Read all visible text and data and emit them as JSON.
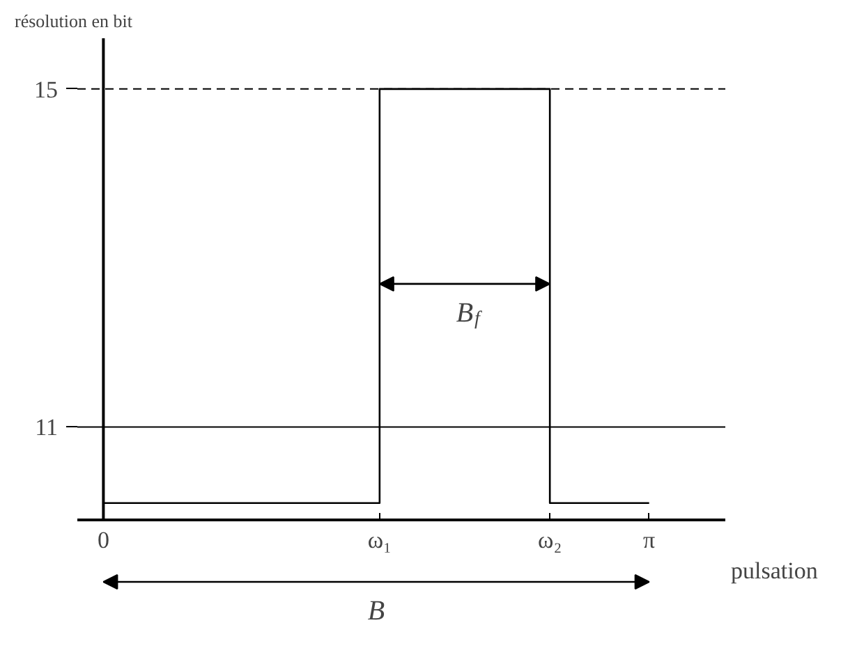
{
  "chart_data": {
    "type": "step",
    "ylabel": "résolution en bit",
    "xlabel": "pulsation",
    "x": [
      0,
      1.59,
      2.57,
      3.14159
    ],
    "series": [
      {
        "color": "#000000",
        "values": [
          10.1,
          15,
          10.1,
          10.1
        ]
      }
    ],
    "xlim": [
      -0.15,
      3.58
    ],
    "ylim": [
      9.9,
      15.6
    ],
    "xticks": [
      0,
      {
        "value": 1.59,
        "label": "ω₁"
      },
      {
        "value": 2.57,
        "label": "ω₂"
      },
      {
        "value": 3.14159,
        "label": "π"
      }
    ],
    "yticks": [
      11,
      15
    ],
    "ref_lines": [
      {
        "axis": "y",
        "value": 15,
        "line_style": "dashed",
        "color": "#000000"
      },
      {
        "axis": "y",
        "value": 11,
        "line_style": "solid",
        "color": "#000000"
      }
    ],
    "annotations": [
      "B$_{f}$",
      "B"
    ],
    "grid": false
  }
}
